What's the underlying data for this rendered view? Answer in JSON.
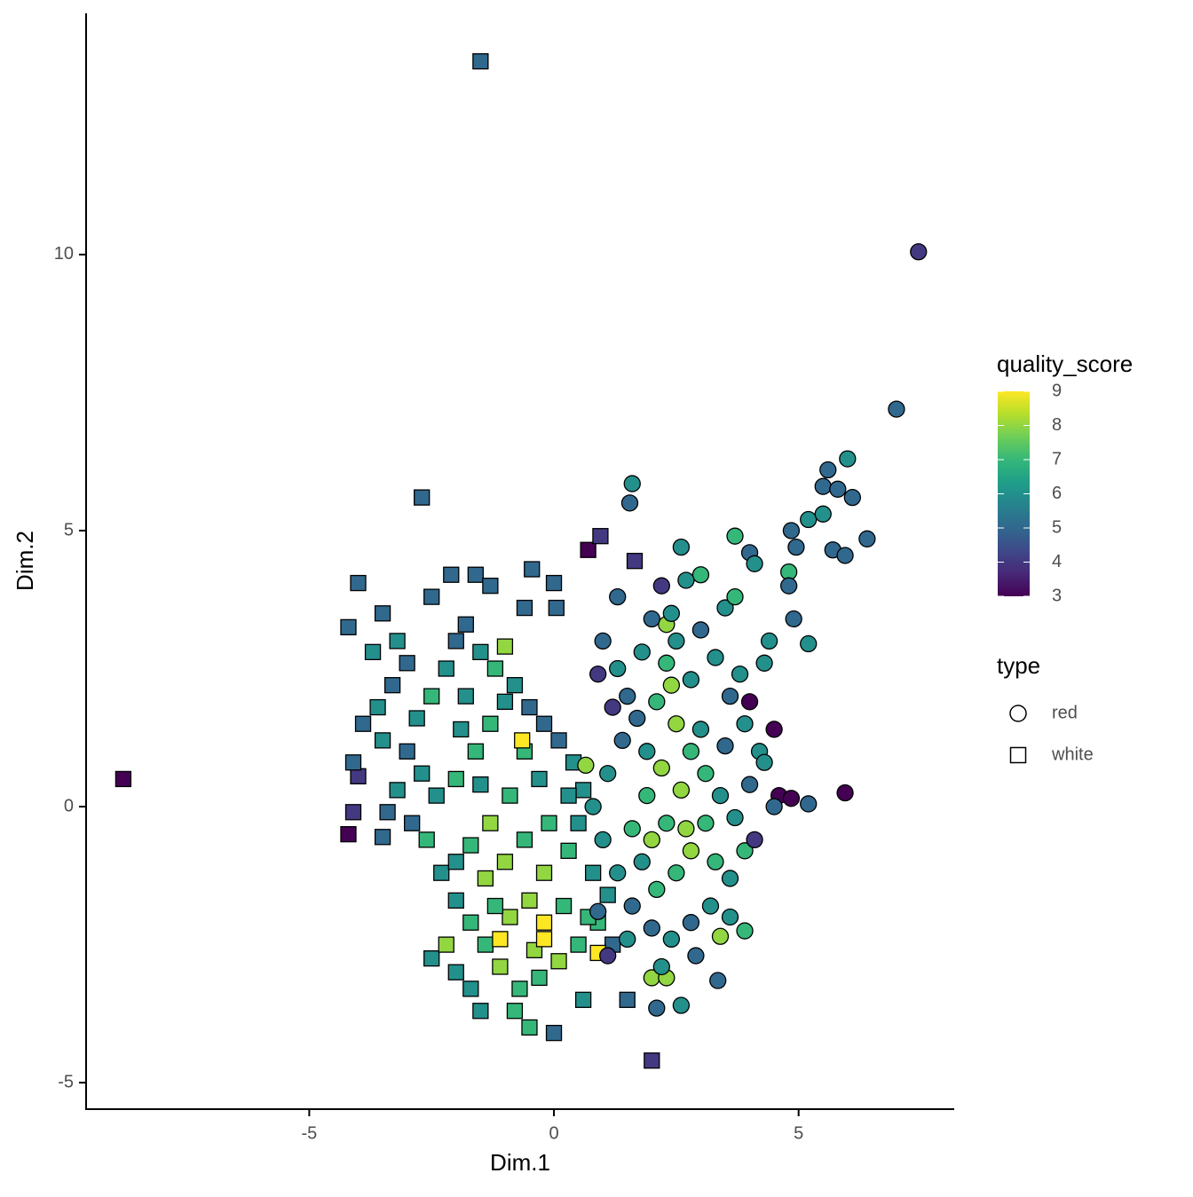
{
  "chart_data": {
    "type": "scatter",
    "x_label": "Dim.1",
    "y_label": "Dim.2",
    "xlim": [
      -9.56,
      8.18
    ],
    "ylim": [
      -5.48,
      14.37
    ],
    "xticks": [
      -5,
      0,
      5
    ],
    "yticks": [
      -5,
      0,
      5,
      10
    ],
    "color_title": "quality_score",
    "color_lim": [
      3,
      9
    ],
    "color_ticks": [
      3,
      4,
      5,
      6,
      7,
      8,
      9
    ],
    "colormap": [
      "#440154",
      "#482878",
      "#3e4989",
      "#31688e",
      "#26828e",
      "#1f9e89",
      "#35b779",
      "#6ece58",
      "#b5de2b",
      "#fde725"
    ],
    "shape_title": "type",
    "series": [
      {
        "name": "white",
        "shape": "square",
        "x": [
          -1.5,
          -8.8,
          -2.7,
          2.0,
          0.7,
          0.95,
          1.65,
          -4.2,
          -4.0,
          -2.1,
          -1.6,
          -1.3,
          -0.45,
          0,
          -0.6,
          0.05,
          -4.2,
          -4.0,
          -4.1,
          -3.5,
          -2.5,
          -2.0,
          -1.7,
          -1.5,
          -0.5,
          0,
          -0.8,
          0.6,
          1.5,
          -3.5,
          -3.2,
          -3.0,
          -3.3,
          -3.6,
          -3.9,
          -3.5,
          -3.0,
          -2.8,
          -2.5,
          -2.2,
          -2.0,
          -1.8,
          -1.5,
          -1.2,
          -1.0,
          -0.8,
          -0.5,
          -0.2,
          0.1,
          0.4,
          0.6,
          0.5,
          0.3,
          0.8,
          1.1,
          0.9,
          0.5,
          0.1,
          -0.3,
          -0.7,
          -1.1,
          -1.4,
          -1.7,
          -2.0,
          -2.3,
          -2.6,
          -2.9,
          -3.2,
          -2.7,
          -2.4,
          -2.0,
          -1.6,
          -1.3,
          -1.0,
          -0.6,
          -0.3,
          -0.9,
          -1.3,
          -1.7,
          -2.0,
          -1.4,
          -1.0,
          -0.6,
          -0.2,
          -0.5,
          -0.9,
          -1.2,
          0.2,
          -0.1,
          0.3,
          -1.8,
          -2.5,
          -3.7,
          -4.1,
          -3.4,
          -2.2,
          -0.4,
          0.7,
          1.2,
          -1.9,
          -1.5,
          -0.65,
          -1.1,
          -0.2,
          -0.2,
          0.9
        ],
        "y": [
          13.5,
          0.5,
          5.6,
          -4.6,
          4.65,
          4.9,
          4.45,
          3.25,
          4.05,
          4.2,
          4.2,
          4.0,
          4.3,
          4.05,
          3.6,
          3.6,
          -0.5,
          0.55,
          -0.1,
          -0.55,
          -2.75,
          -3.0,
          -3.3,
          -3.7,
          -4.0,
          -4.1,
          -3.7,
          -3.5,
          -3.5,
          3.5,
          3.0,
          2.6,
          2.2,
          1.8,
          1.5,
          1.2,
          1.0,
          1.6,
          2.0,
          2.5,
          3.0,
          3.3,
          2.8,
          2.5,
          2.9,
          2.2,
          1.8,
          1.5,
          1.2,
          0.8,
          0.3,
          -0.3,
          -0.8,
          -1.2,
          -1.6,
          -2.1,
          -2.5,
          -2.8,
          -3.1,
          -3.3,
          -2.9,
          -2.5,
          -2.1,
          -1.7,
          -1.2,
          -0.6,
          -0.3,
          0.3,
          0.6,
          0.2,
          0.5,
          1.0,
          1.5,
          1.9,
          1.0,
          0.5,
          0.2,
          -0.3,
          -0.7,
          -1.0,
          -1.3,
          -1.0,
          -0.6,
          -1.2,
          -1.7,
          -2.0,
          -1.8,
          -1.8,
          -0.3,
          0.2,
          2.0,
          3.8,
          2.8,
          0.8,
          -0.1,
          -2.5,
          -2.6,
          -2.0,
          -2.5,
          1.4,
          0.4,
          1.2,
          -2.4,
          -2.1,
          -2.4,
          -2.65
        ],
        "values": [
          5,
          3,
          5,
          4,
          3,
          4,
          4,
          5,
          5,
          5,
          5,
          5,
          5,
          5,
          5,
          5,
          3,
          4,
          4,
          5,
          6,
          6,
          6,
          6,
          7,
          5,
          7,
          6,
          5,
          5,
          6,
          5,
          5,
          6,
          5,
          6,
          5,
          6,
          7,
          6,
          5,
          5,
          6,
          7,
          8,
          6,
          5,
          5,
          5,
          6,
          6,
          6,
          7,
          6,
          6,
          7,
          7,
          8,
          7,
          7,
          8,
          7,
          7,
          6,
          6,
          7,
          5,
          6,
          6,
          6,
          7,
          7,
          7,
          6,
          7,
          6,
          7,
          8,
          7,
          6,
          8,
          8,
          7,
          8,
          8,
          8,
          7,
          7,
          7,
          6,
          6,
          5,
          6,
          5,
          5,
          8,
          8,
          7,
          5,
          6,
          6,
          9,
          9,
          9,
          9,
          9
        ]
      },
      {
        "name": "red",
        "shape": "circle",
        "x": [
          7.45,
          7.0,
          6.0,
          5.6,
          5.5,
          5.8,
          6.1,
          5.2,
          5.5,
          6.4,
          5.7,
          5.95,
          4.85,
          4.95,
          4.8,
          4.8,
          1.6,
          1.55,
          2.6,
          3.7,
          4.0,
          4.1,
          5.2,
          4.9,
          5.95,
          5.2,
          4.6,
          4.85,
          4.5,
          3.9,
          3.4,
          3.35,
          2.1,
          2.6,
          2.0,
          2.3,
          1.3,
          2.2,
          2.3,
          0.65,
          1.0,
          1.3,
          1.5,
          1.8,
          2.0,
          2.3,
          2.5,
          2.8,
          3.0,
          3.3,
          3.6,
          3.9,
          4.2,
          4.0,
          3.7,
          3.9,
          3.6,
          3.2,
          2.8,
          2.4,
          2.0,
          1.6,
          1.3,
          1.0,
          0.8,
          1.1,
          1.4,
          1.7,
          2.1,
          2.5,
          2.8,
          3.1,
          3.4,
          3.1,
          2.8,
          2.5,
          2.1,
          1.8,
          1.6,
          1.9,
          2.2,
          2.6,
          2.3,
          2.0,
          2.7,
          3.0,
          3.5,
          3.8,
          4.3,
          4.4,
          3.5,
          3.0,
          2.7,
          2.4,
          3.7,
          4.0,
          4.5,
          4.3,
          4.1,
          3.6,
          2.9,
          1.5,
          1.1,
          0.9,
          1.2,
          0.9,
          1.9,
          2.4,
          3.3,
          2.2
        ],
        "y": [
          10.05,
          7.2,
          6.3,
          6.1,
          5.8,
          5.75,
          5.6,
          5.2,
          5.3,
          4.85,
          4.65,
          4.55,
          5.0,
          4.7,
          4.25,
          4.0,
          5.85,
          5.5,
          4.7,
          4.9,
          4.6,
          4.4,
          2.95,
          3.4,
          0.25,
          0.05,
          0.2,
          0.15,
          0.0,
          -2.25,
          -2.35,
          -3.15,
          -3.65,
          -3.6,
          -3.1,
          -3.1,
          3.8,
          4.0,
          3.3,
          0.75,
          3.0,
          2.5,
          2.0,
          2.8,
          3.4,
          2.6,
          3.0,
          2.3,
          3.2,
          2.7,
          2.0,
          1.5,
          1.0,
          0.4,
          -0.2,
          -0.8,
          -1.3,
          -1.8,
          -2.1,
          -2.4,
          -2.2,
          -1.8,
          -1.2,
          -0.6,
          0.0,
          0.6,
          1.2,
          1.6,
          1.9,
          1.5,
          1.0,
          0.6,
          0.2,
          -0.3,
          -0.8,
          -1.2,
          -1.5,
          -1.0,
          -0.4,
          0.2,
          0.7,
          0.3,
          -0.3,
          -0.6,
          -0.4,
          1.4,
          1.1,
          2.4,
          2.6,
          3.0,
          3.6,
          4.2,
          4.1,
          3.5,
          3.8,
          1.9,
          1.4,
          0.8,
          -0.6,
          -2.0,
          -2.7,
          -2.4,
          -2.7,
          -1.9,
          1.8,
          2.4,
          1.0,
          2.2,
          -1.0,
          -2.9
        ],
        "values": [
          4,
          5,
          6,
          5,
          5,
          5,
          5,
          6,
          6,
          5,
          5,
          5,
          5,
          5,
          7,
          5,
          6,
          5,
          6,
          7,
          5,
          6,
          6,
          5,
          3,
          5,
          3,
          3,
          5,
          7,
          8,
          5,
          5,
          6,
          8,
          8,
          5,
          4,
          8,
          8,
          5,
          6,
          5,
          6,
          5,
          7,
          6,
          6,
          5,
          6,
          5,
          6,
          6,
          5,
          6,
          7,
          6,
          6,
          5,
          6,
          5,
          5,
          6,
          6,
          6,
          6,
          5,
          5,
          7,
          8,
          7,
          7,
          6,
          7,
          8,
          7,
          7,
          6,
          7,
          7,
          8,
          8,
          7,
          8,
          8,
          6,
          5,
          6,
          6,
          6,
          6,
          7,
          6,
          6,
          7,
          3,
          3,
          6,
          4,
          6,
          5,
          6,
          4,
          5,
          4,
          4,
          6,
          8,
          7,
          6
        ]
      }
    ]
  }
}
